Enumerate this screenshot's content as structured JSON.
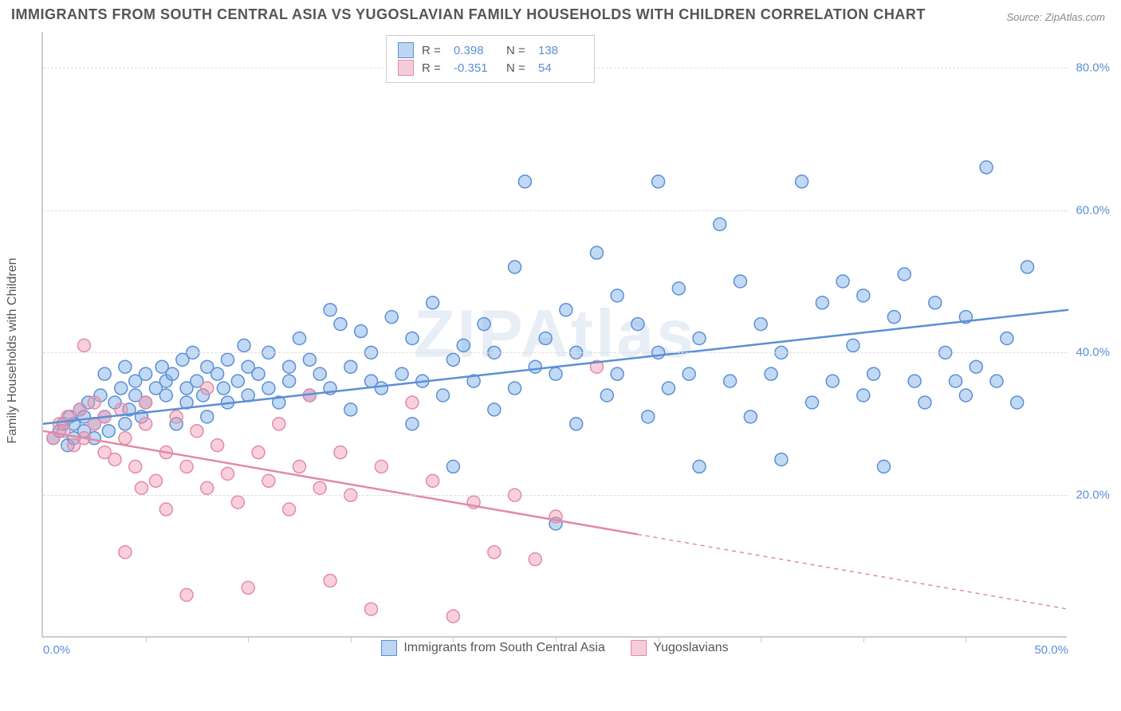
{
  "title": "IMMIGRANTS FROM SOUTH CENTRAL ASIA VS YUGOSLAVIAN FAMILY HOUSEHOLDS WITH CHILDREN CORRELATION CHART",
  "source": "Source: ZipAtlas.com",
  "watermark": "ZIPAtlas",
  "ylabel": "Family Households with Children",
  "chart": {
    "type": "scatter",
    "xlim": [
      0,
      50
    ],
    "ylim": [
      0,
      85
    ],
    "xtick_labels": [
      "0.0%",
      "50.0%"
    ],
    "xtick_positions": [
      0,
      50
    ],
    "xtick_minor": [
      5,
      10,
      15,
      20,
      25,
      30,
      35,
      40,
      45
    ],
    "ytick_labels": [
      "20.0%",
      "40.0%",
      "60.0%",
      "80.0%"
    ],
    "ytick_positions": [
      20,
      40,
      60,
      80
    ],
    "grid_color": "#dddddd",
    "background_color": "#ffffff",
    "axis_color": "#cccccc",
    "marker_radius": 8,
    "marker_stroke_width": 1.5,
    "trend_stroke_width": 2.5
  },
  "series": [
    {
      "name": "Immigrants from South Central Asia",
      "fill_color": "rgba(120, 170, 230, 0.45)",
      "stroke_color": "#5b8fd6",
      "swatch_fill": "#bcd5f0",
      "swatch_border": "#5b8fd6",
      "R": "0.398",
      "N": "138",
      "trend": {
        "x1": 0,
        "y1": 30,
        "x2": 50,
        "y2": 46,
        "solid_until": 50
      },
      "points": [
        [
          0.5,
          28
        ],
        [
          0.8,
          29
        ],
        [
          1.0,
          30
        ],
        [
          1.2,
          27
        ],
        [
          1.3,
          31
        ],
        [
          1.5,
          28
        ],
        [
          1.5,
          30
        ],
        [
          1.8,
          32
        ],
        [
          2.0,
          29
        ],
        [
          2.0,
          31
        ],
        [
          2.2,
          33
        ],
        [
          2.5,
          30
        ],
        [
          2.5,
          28
        ],
        [
          2.8,
          34
        ],
        [
          3.0,
          31
        ],
        [
          3.0,
          37
        ],
        [
          3.2,
          29
        ],
        [
          3.5,
          33
        ],
        [
          3.8,
          35
        ],
        [
          4.0,
          30
        ],
        [
          4.0,
          38
        ],
        [
          4.2,
          32
        ],
        [
          4.5,
          36
        ],
        [
          4.5,
          34
        ],
        [
          4.8,
          31
        ],
        [
          5.0,
          37
        ],
        [
          5.0,
          33
        ],
        [
          5.5,
          35
        ],
        [
          5.8,
          38
        ],
        [
          6.0,
          34
        ],
        [
          6.0,
          36
        ],
        [
          6.3,
          37
        ],
        [
          6.5,
          30
        ],
        [
          6.8,
          39
        ],
        [
          7.0,
          35
        ],
        [
          7.0,
          33
        ],
        [
          7.3,
          40
        ],
        [
          7.5,
          36
        ],
        [
          7.8,
          34
        ],
        [
          8.0,
          38
        ],
        [
          8.0,
          31
        ],
        [
          8.5,
          37
        ],
        [
          8.8,
          35
        ],
        [
          9.0,
          39
        ],
        [
          9.0,
          33
        ],
        [
          9.5,
          36
        ],
        [
          9.8,
          41
        ],
        [
          10.0,
          34
        ],
        [
          10.0,
          38
        ],
        [
          10.5,
          37
        ],
        [
          11.0,
          35
        ],
        [
          11.0,
          40
        ],
        [
          11.5,
          33
        ],
        [
          12.0,
          38
        ],
        [
          12.0,
          36
        ],
        [
          12.5,
          42
        ],
        [
          13.0,
          34
        ],
        [
          13.0,
          39
        ],
        [
          13.5,
          37
        ],
        [
          14.0,
          46
        ],
        [
          14.0,
          35
        ],
        [
          14.5,
          44
        ],
        [
          15.0,
          38
        ],
        [
          15.0,
          32
        ],
        [
          15.5,
          43
        ],
        [
          16.0,
          36
        ],
        [
          16.0,
          40
        ],
        [
          16.5,
          35
        ],
        [
          17.0,
          45
        ],
        [
          17.5,
          37
        ],
        [
          18.0,
          30
        ],
        [
          18.0,
          42
        ],
        [
          18.5,
          36
        ],
        [
          19.0,
          47
        ],
        [
          19.5,
          34
        ],
        [
          20.0,
          39
        ],
        [
          20.0,
          24
        ],
        [
          20.5,
          41
        ],
        [
          21.0,
          36
        ],
        [
          21.5,
          44
        ],
        [
          22.0,
          32
        ],
        [
          22.0,
          40
        ],
        [
          23.0,
          52
        ],
        [
          23.0,
          35
        ],
        [
          23.5,
          64
        ],
        [
          24.0,
          38
        ],
        [
          24.5,
          42
        ],
        [
          25.0,
          16
        ],
        [
          25.0,
          37
        ],
        [
          25.5,
          46
        ],
        [
          26.0,
          30
        ],
        [
          26.0,
          40
        ],
        [
          27.0,
          54
        ],
        [
          27.5,
          34
        ],
        [
          28.0,
          48
        ],
        [
          28.0,
          37
        ],
        [
          29.0,
          44
        ],
        [
          29.5,
          31
        ],
        [
          30.0,
          64
        ],
        [
          30.0,
          40
        ],
        [
          30.5,
          35
        ],
        [
          31.0,
          49
        ],
        [
          31.5,
          37
        ],
        [
          32.0,
          24
        ],
        [
          32.0,
          42
        ],
        [
          33.0,
          58
        ],
        [
          33.5,
          36
        ],
        [
          34.0,
          50
        ],
        [
          34.5,
          31
        ],
        [
          35.0,
          44
        ],
        [
          35.5,
          37
        ],
        [
          36.0,
          25
        ],
        [
          36.0,
          40
        ],
        [
          37.0,
          64
        ],
        [
          37.5,
          33
        ],
        [
          38.0,
          47
        ],
        [
          38.5,
          36
        ],
        [
          39.0,
          50
        ],
        [
          39.5,
          41
        ],
        [
          40.0,
          34
        ],
        [
          40.0,
          48
        ],
        [
          40.5,
          37
        ],
        [
          41.0,
          24
        ],
        [
          41.5,
          45
        ],
        [
          42.0,
          51
        ],
        [
          42.5,
          36
        ],
        [
          43.0,
          33
        ],
        [
          43.5,
          47
        ],
        [
          44.0,
          40
        ],
        [
          44.5,
          36
        ],
        [
          45.0,
          34
        ],
        [
          45.0,
          45
        ],
        [
          45.5,
          38
        ],
        [
          46.0,
          66
        ],
        [
          46.5,
          36
        ],
        [
          47.0,
          42
        ],
        [
          47.5,
          33
        ],
        [
          48.0,
          52
        ]
      ]
    },
    {
      "name": "Yugoslavians",
      "fill_color": "rgba(240, 150, 175, 0.45)",
      "stroke_color": "#e38aa5",
      "swatch_fill": "#f5cdd9",
      "swatch_border": "#e38aa5",
      "R": "-0.351",
      "N": "54",
      "trend": {
        "x1": 0,
        "y1": 29,
        "x2": 50,
        "y2": 4,
        "solid_until": 29
      },
      "points": [
        [
          0.5,
          28
        ],
        [
          0.8,
          30
        ],
        [
          1.0,
          29
        ],
        [
          1.2,
          31
        ],
        [
          1.5,
          27
        ],
        [
          1.8,
          32
        ],
        [
          2.0,
          28
        ],
        [
          2.0,
          41
        ],
        [
          2.5,
          30
        ],
        [
          2.5,
          33
        ],
        [
          3.0,
          26
        ],
        [
          3.0,
          31
        ],
        [
          3.5,
          25
        ],
        [
          3.8,
          32
        ],
        [
          4.0,
          12
        ],
        [
          4.0,
          28
        ],
        [
          4.5,
          24
        ],
        [
          4.8,
          21
        ],
        [
          5.0,
          30
        ],
        [
          5.0,
          33
        ],
        [
          5.5,
          22
        ],
        [
          6.0,
          26
        ],
        [
          6.0,
          18
        ],
        [
          6.5,
          31
        ],
        [
          7.0,
          24
        ],
        [
          7.0,
          6
        ],
        [
          7.5,
          29
        ],
        [
          8.0,
          21
        ],
        [
          8.0,
          35
        ],
        [
          8.5,
          27
        ],
        [
          9.0,
          23
        ],
        [
          9.5,
          19
        ],
        [
          10.0,
          7
        ],
        [
          10.5,
          26
        ],
        [
          11.0,
          22
        ],
        [
          11.5,
          30
        ],
        [
          12.0,
          18
        ],
        [
          12.5,
          24
        ],
        [
          13.0,
          34
        ],
        [
          13.5,
          21
        ],
        [
          14.0,
          8
        ],
        [
          14.5,
          26
        ],
        [
          15.0,
          20
        ],
        [
          16.0,
          4
        ],
        [
          16.5,
          24
        ],
        [
          18.0,
          33
        ],
        [
          19.0,
          22
        ],
        [
          20.0,
          3
        ],
        [
          21.0,
          19
        ],
        [
          22.0,
          12
        ],
        [
          23.0,
          20
        ],
        [
          24.0,
          11
        ],
        [
          25.0,
          17
        ],
        [
          27.0,
          38
        ]
      ]
    }
  ],
  "legend_bottom": [
    {
      "label": "Immigrants from South Central Asia",
      "series": 0
    },
    {
      "label": "Yugoslavians",
      "series": 1
    }
  ]
}
